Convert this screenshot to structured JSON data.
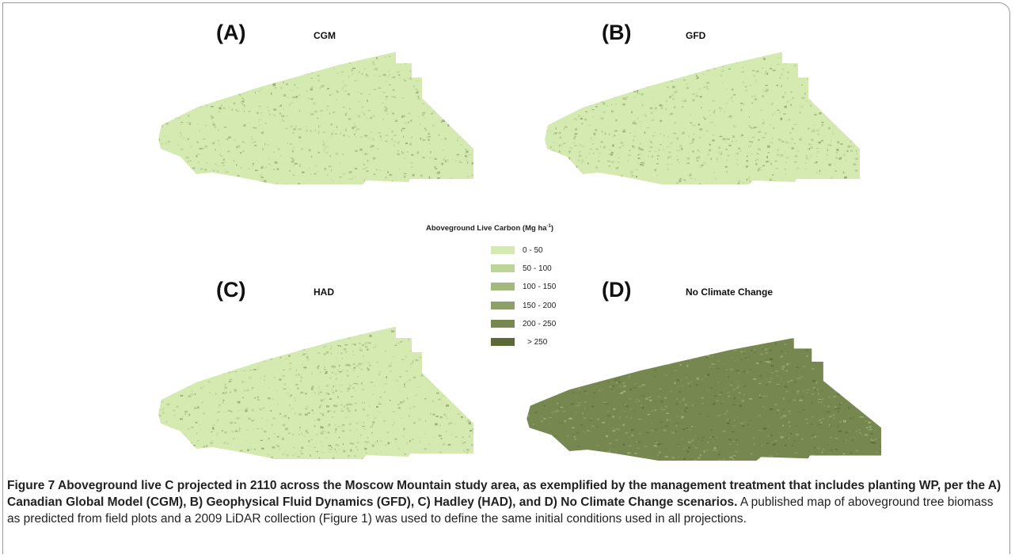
{
  "panels": [
    {
      "letter": "(A)",
      "name": "CGM",
      "level": 0
    },
    {
      "letter": "(B)",
      "name": "GFD",
      "level": 0
    },
    {
      "letter": "(C)",
      "name": "HAD",
      "level": 0
    },
    {
      "letter": "(D)",
      "name": "No Climate Change",
      "level": 4
    }
  ],
  "legend": {
    "title": "Aboveground Live Carbon (Mg ha",
    "title_sup": "-1",
    "title_close": ")",
    "classes": [
      {
        "label": "0 - 50",
        "color": "#d4eab1"
      },
      {
        "label": "50 - 100",
        "color": "#bcd598"
      },
      {
        "label": "100 - 150",
        "color": "#a3b97d"
      },
      {
        "label": "150 - 200",
        "color": "#8da069"
      },
      {
        "label": "200 - 250",
        "color": "#76874f"
      },
      {
        "label": "> 250",
        "color": "#5c6b35"
      }
    ]
  },
  "caption": {
    "bold": "Figure 7 Aboveground live C projected in 2110 across the Moscow Mountain study area, as exemplified by the management treatment that includes planting WP, per the A) Canadian Global Model (CGM), B) Geophysical Fluid Dynamics (GFD), C) Hadley (HAD), and D) No Climate Change scenarios.",
    "normal": " A published map of aboveground tree biomass as predicted from field plots and a 2009 LiDAR collection (Figure 1) was used to define the same initial conditions used in all projections."
  }
}
